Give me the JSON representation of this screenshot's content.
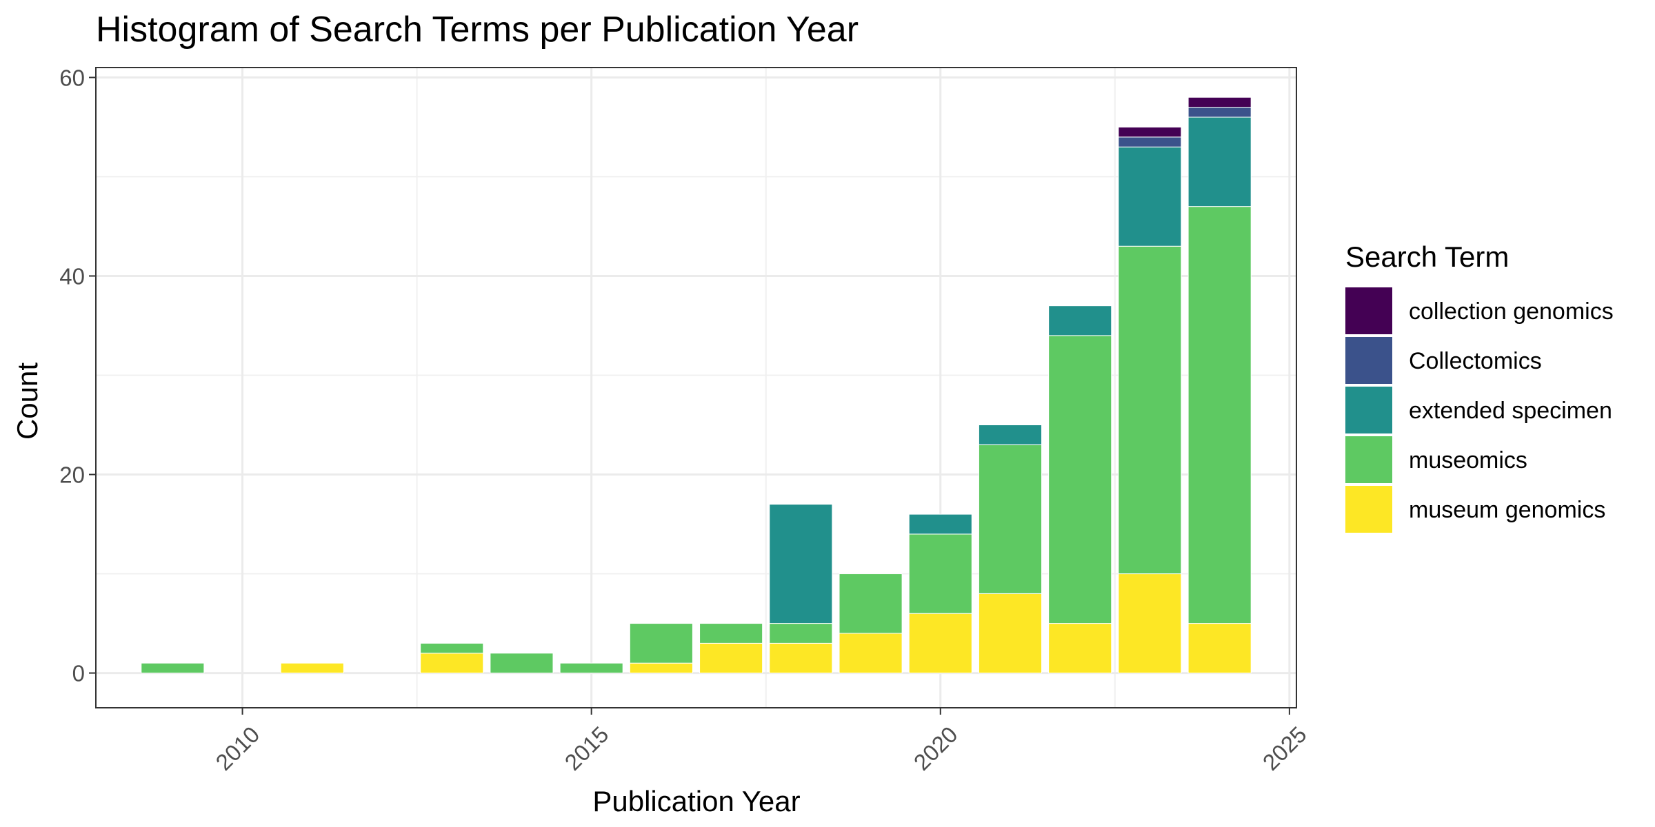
{
  "chart_data": {
    "type": "bar",
    "stacked": true,
    "title": "Histogram of Search Terms per Publication Year",
    "xlabel": "Publication Year",
    "ylabel": "Count",
    "xlim": [
      2007.9,
      2025.1
    ],
    "ylim": [
      -3.5,
      61
    ],
    "x_ticks": [
      2010,
      2015,
      2020,
      2025
    ],
    "y_ticks": [
      0,
      20,
      40,
      60
    ],
    "grid": true,
    "legend": {
      "title": "Search Term",
      "placement": "right"
    },
    "categories": [
      2009,
      2011,
      2013,
      2014,
      2015,
      2016,
      2017,
      2018,
      2019,
      2020,
      2021,
      2022,
      2023,
      2024
    ],
    "series": [
      {
        "name": "museum genomics",
        "color": "#FDE725",
        "values": [
          0,
          1,
          2,
          0,
          0,
          1,
          3,
          3,
          4,
          6,
          8,
          5,
          10,
          5
        ]
      },
      {
        "name": "museomics",
        "color": "#5EC962",
        "values": [
          1,
          0,
          1,
          2,
          1,
          4,
          2,
          2,
          6,
          8,
          15,
          29,
          33,
          42
        ]
      },
      {
        "name": "extended specimen",
        "color": "#21908C",
        "values": [
          0,
          0,
          0,
          0,
          0,
          0,
          0,
          12,
          0,
          2,
          2,
          3,
          10,
          9
        ]
      },
      {
        "name": "Collectomics",
        "color": "#3B528B",
        "values": [
          0,
          0,
          0,
          0,
          0,
          0,
          0,
          0,
          0,
          0,
          0,
          0,
          1,
          1
        ]
      },
      {
        "name": "collection genomics",
        "color": "#440154",
        "values": [
          0,
          0,
          0,
          0,
          0,
          0,
          0,
          0,
          0,
          0,
          0,
          0,
          1,
          1
        ]
      }
    ],
    "legend_order": [
      "collection genomics",
      "Collectomics",
      "extended specimen",
      "museomics",
      "museum genomics"
    ]
  }
}
